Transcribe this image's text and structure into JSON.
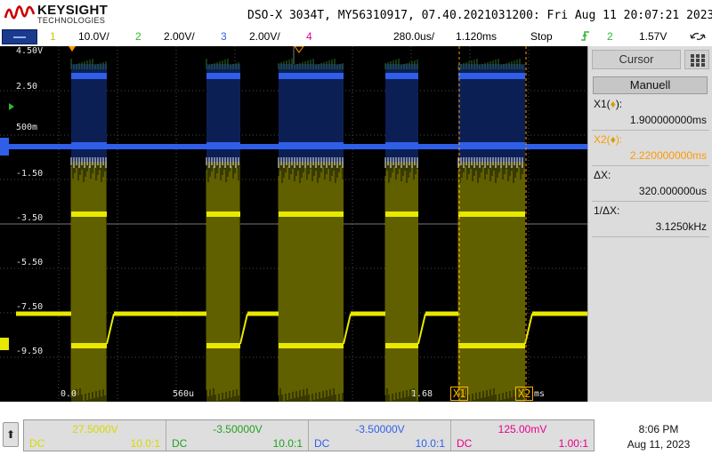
{
  "header": {
    "brand": "KEYSIGHT",
    "brand_sub": "TECHNOLOGIES",
    "title": "DSO-X 3034T, MY56310917, 07.40.2021031200: Fri Aug 11 20:07:21 2023"
  },
  "status_bar": {
    "ch1_num": "1",
    "ch1_scale": "10.0V/",
    "ch2_num": "2",
    "ch2_scale": "2.00V/",
    "ch3_num": "3",
    "ch3_scale": "2.00V/",
    "ch4_num": "4",
    "timebase": "280.0us/",
    "delay": "1.120ms",
    "run_state": "Stop",
    "trigger_icon": "rising-edge-icon",
    "trigger_source": "2",
    "trigger_level": "1.57V",
    "extra_icon": "undo-redo-icon"
  },
  "graticule": {
    "y_labels": [
      "4.50V",
      "2.50",
      "500m",
      "-1.50",
      "-3.50",
      "-5.50",
      "-7.50",
      "-9.50"
    ],
    "x_labels": [
      "0.0",
      "560u",
      "1.68",
      "ms"
    ],
    "cursor_markers": [
      "X1",
      "X2"
    ]
  },
  "cursor_panel": {
    "title": "Cursor",
    "mode": "Manuell",
    "x1_label": "X1(",
    "x1_label_end": "):",
    "x1_value": "1.900000000ms",
    "x2_label": "X2(",
    "x2_label_end": "):",
    "x2_value": "2.220000000ms",
    "dx_label": "ΔX:",
    "dx_value": "320.000000us",
    "inv_dx_label": "1/ΔX:",
    "inv_dx_value": "3.1250kHz"
  },
  "bottom_bar": {
    "channels": [
      {
        "offset": "27.5000V",
        "coupling": "DC",
        "probe": "10.0:1",
        "color": "#e8e800"
      },
      {
        "offset": "-3.50000V",
        "coupling": "DC",
        "probe": "10.0:1",
        "color": "#2db82d"
      },
      {
        "offset": "-3.50000V",
        "coupling": "DC",
        "probe": "10.0:1",
        "color": "#2f5fe8"
      },
      {
        "offset": "125.00mV",
        "coupling": "DC",
        "probe": "1.00:1",
        "color": "#e8008c"
      }
    ],
    "time": "8:06 PM",
    "date": "Aug 11, 2023"
  },
  "colors": {
    "ch1": "#e8e800",
    "ch2": "#2db82d",
    "ch3": "#2f5fe8",
    "ch4": "#e8008c",
    "cursor": "#ff9900",
    "trigger_marker": "#ff9900"
  }
}
